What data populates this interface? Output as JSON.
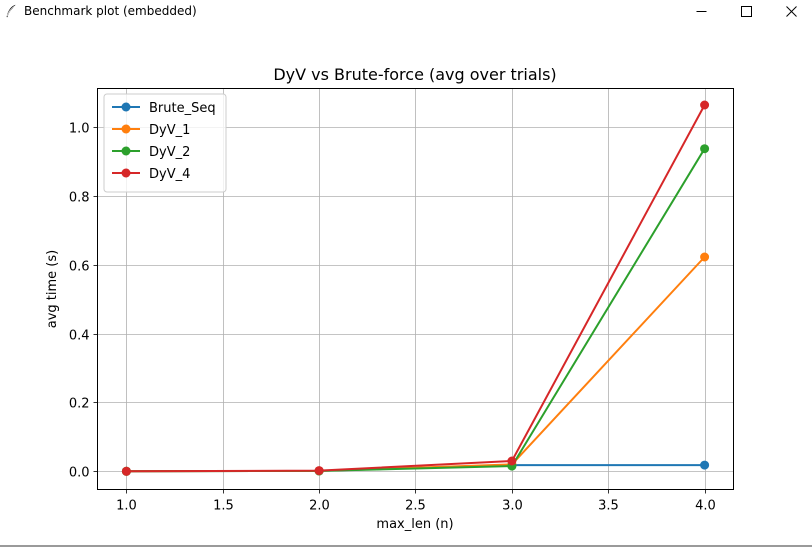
{
  "window": {
    "title": "Benchmark plot (embedded)",
    "icon": "feather-icon",
    "controls": {
      "minimize": "minimize-icon",
      "maximize": "maximize-icon",
      "close": "close-icon"
    }
  },
  "chart_data": {
    "type": "line",
    "title": "DyV vs Brute-force (avg over trials)",
    "xlabel": "max_len (n)",
    "ylabel": "avg time (s)",
    "x": [
      1.0,
      2.0,
      3.0,
      4.0
    ],
    "xlim": [
      0.85,
      4.15
    ],
    "ylim": [
      -0.053,
      1.113
    ],
    "xticks": [
      1.0,
      1.5,
      2.0,
      2.5,
      3.0,
      3.5,
      4.0
    ],
    "xtick_labels": [
      "1.0",
      "1.5",
      "2.0",
      "2.5",
      "3.0",
      "3.5",
      "4.0"
    ],
    "yticks": [
      0.0,
      0.2,
      0.4,
      0.6,
      0.8,
      1.0
    ],
    "ytick_labels": [
      "0.0",
      "0.2",
      "0.4",
      "0.6",
      "0.8",
      "1.0"
    ],
    "grid": true,
    "legend_position": "upper-left",
    "marker": "circle",
    "series": [
      {
        "name": "Brute_Seq",
        "color": "#1f77b4",
        "values": [
          0.0,
          0.001,
          0.018,
          0.018
        ]
      },
      {
        "name": "DyV_1",
        "color": "#ff7f0e",
        "values": [
          0.0,
          0.001,
          0.02,
          0.623
        ]
      },
      {
        "name": "DyV_2",
        "color": "#2ca02c",
        "values": [
          0.0,
          0.001,
          0.015,
          0.938
        ]
      },
      {
        "name": "DyV_4",
        "color": "#d62728",
        "values": [
          0.0,
          0.002,
          0.03,
          1.065
        ]
      }
    ]
  }
}
